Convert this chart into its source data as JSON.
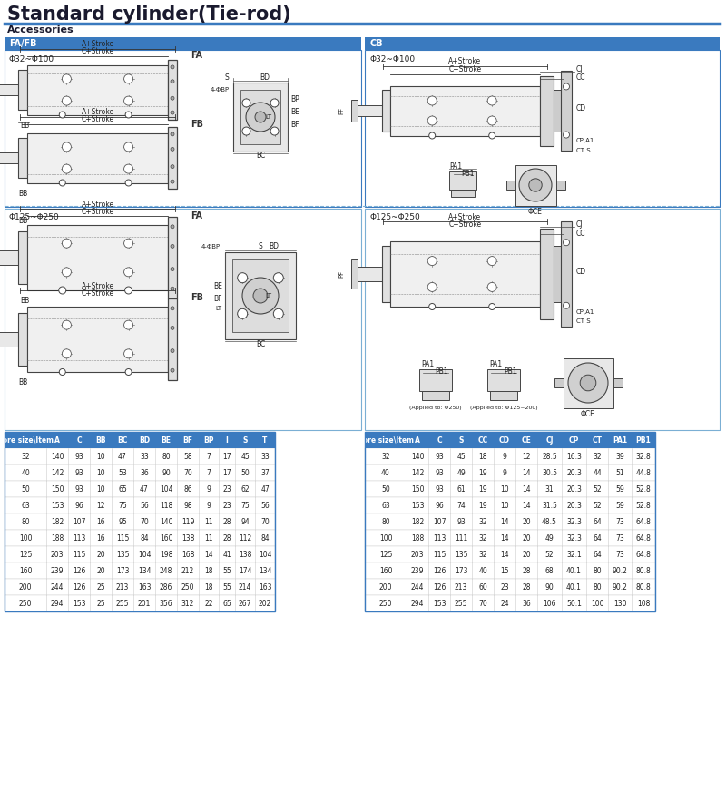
{
  "title": "Standard cylinder(Tie-rod)",
  "subtitle": "Accessories",
  "title_color": "#1a1a2e",
  "header_bg": "#3a7abf",
  "header_text": "#ffffff",
  "section_fafb_label": "FA/FB",
  "section_cb_label": "CB",
  "section_fafb_bore1": "Φ32~Φ100",
  "section_fafb_bore2": "Φ125~Φ250",
  "section_cb_bore1": "Φ32~Φ100",
  "section_cb_bore2": "Φ125~Φ250",
  "left_table_headers": [
    "Bore size\\Item",
    "A",
    "C",
    "BB",
    "BC",
    "BD",
    "BE",
    "BF",
    "BP",
    "I",
    "S",
    "T"
  ],
  "left_table_data": [
    [
      "32",
      "140",
      "93",
      "10",
      "47",
      "33",
      "80",
      "58",
      "7",
      "17",
      "45",
      "33"
    ],
    [
      "40",
      "142",
      "93",
      "10",
      "53",
      "36",
      "90",
      "70",
      "7",
      "17",
      "50",
      "37"
    ],
    [
      "50",
      "150",
      "93",
      "10",
      "65",
      "47",
      "104",
      "86",
      "9",
      "23",
      "62",
      "47"
    ],
    [
      "63",
      "153",
      "96",
      "12",
      "75",
      "56",
      "118",
      "98",
      "9",
      "23",
      "75",
      "56"
    ],
    [
      "80",
      "182",
      "107",
      "16",
      "95",
      "70",
      "140",
      "119",
      "11",
      "28",
      "94",
      "70"
    ],
    [
      "100",
      "188",
      "113",
      "16",
      "115",
      "84",
      "160",
      "138",
      "11",
      "28",
      "112",
      "84"
    ],
    [
      "125",
      "203",
      "115",
      "20",
      "135",
      "104",
      "198",
      "168",
      "14",
      "41",
      "138",
      "104"
    ],
    [
      "160",
      "239",
      "126",
      "20",
      "173",
      "134",
      "248",
      "212",
      "18",
      "55",
      "174",
      "134"
    ],
    [
      "200",
      "244",
      "126",
      "25",
      "213",
      "163",
      "286",
      "250",
      "18",
      "55",
      "214",
      "163"
    ],
    [
      "250",
      "294",
      "153",
      "25",
      "255",
      "201",
      "356",
      "312",
      "22",
      "65",
      "267",
      "202"
    ]
  ],
  "right_table_headers": [
    "Bore size\\Item",
    "A",
    "C",
    "S",
    "CC",
    "CD",
    "CE",
    "CJ",
    "CP",
    "CT",
    "PA1",
    "PB1"
  ],
  "right_table_data": [
    [
      "32",
      "140",
      "93",
      "45",
      "18",
      "9",
      "12",
      "28.5",
      "16.3",
      "32",
      "39",
      "32.8"
    ],
    [
      "40",
      "142",
      "93",
      "49",
      "19",
      "9",
      "14",
      "30.5",
      "20.3",
      "44",
      "51",
      "44.8"
    ],
    [
      "50",
      "150",
      "93",
      "61",
      "19",
      "10",
      "14",
      "31",
      "20.3",
      "52",
      "59",
      "52.8"
    ],
    [
      "63",
      "153",
      "96",
      "74",
      "19",
      "10",
      "14",
      "31.5",
      "20.3",
      "52",
      "59",
      "52.8"
    ],
    [
      "80",
      "182",
      "107",
      "93",
      "32",
      "14",
      "20",
      "48.5",
      "32.3",
      "64",
      "73",
      "64.8"
    ],
    [
      "100",
      "188",
      "113",
      "111",
      "32",
      "14",
      "20",
      "49",
      "32.3",
      "64",
      "73",
      "64.8"
    ],
    [
      "125",
      "203",
      "115",
      "135",
      "32",
      "14",
      "20",
      "52",
      "32.1",
      "64",
      "73",
      "64.8"
    ],
    [
      "160",
      "239",
      "126",
      "173",
      "40",
      "15",
      "28",
      "68",
      "40.1",
      "80",
      "90.2",
      "80.8"
    ],
    [
      "200",
      "244",
      "126",
      "213",
      "60",
      "23",
      "28",
      "90",
      "40.1",
      "80",
      "90.2",
      "80.8"
    ],
    [
      "250",
      "294",
      "153",
      "255",
      "70",
      "24",
      "36",
      "106",
      "50.1",
      "100",
      "130",
      "108"
    ]
  ],
  "bg_color": "#ffffff",
  "section_border_color": "#3a7abf",
  "line_color": "#333333",
  "divider_color": "#3a7abf",
  "dashed_border_color": "#7bafd4"
}
